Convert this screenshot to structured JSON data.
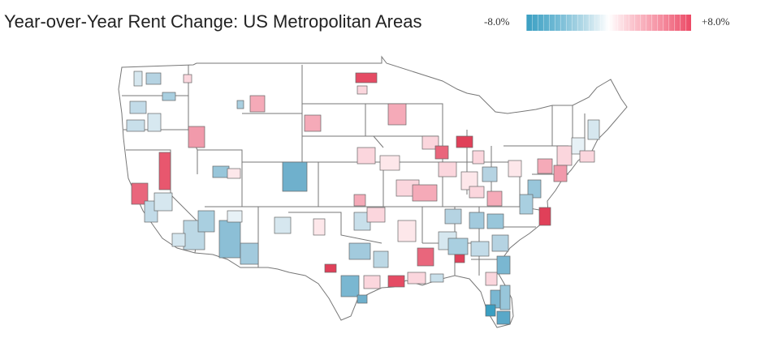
{
  "title": "Year-over-Year Rent Change: US Metropolitan Areas",
  "legend": {
    "min_label": "-8.0%",
    "max_label": "+8.0%"
  },
  "colors": {
    "negative": "#3a9fc2",
    "neutral": "#ffffff",
    "positive": "#ec4a66"
  }
}
